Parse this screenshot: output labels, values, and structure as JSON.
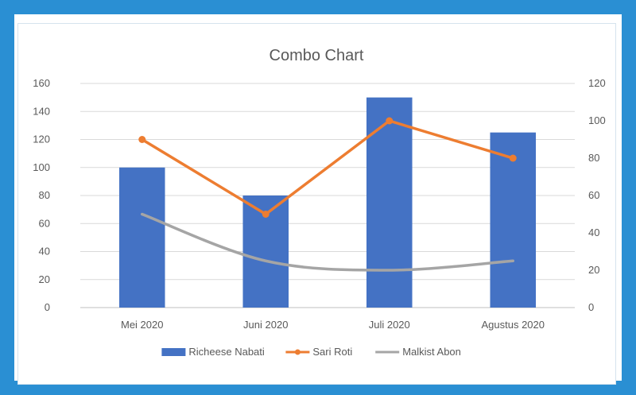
{
  "chart_data": {
    "type": "bar",
    "title": "Combo Chart",
    "categories": [
      "Mei 2020",
      "Juni 2020",
      "Juli 2020",
      "Agustus 2020"
    ],
    "y_left": {
      "ticks": [
        0,
        20,
        40,
        60,
        80,
        100,
        120,
        140,
        160
      ],
      "ylim": [
        0,
        160
      ]
    },
    "y_right": {
      "ticks": [
        0,
        20,
        40,
        60,
        80,
        100,
        120
      ],
      "ylim": [
        0,
        120
      ]
    },
    "grid": true,
    "legend_position": "bottom",
    "series": [
      {
        "name": "Richeese Nabati",
        "kind": "bar",
        "axis": "left",
        "color": "#4472c4",
        "values": [
          100,
          80,
          150,
          125
        ]
      },
      {
        "name": "Sari Roti",
        "kind": "line",
        "axis": "right",
        "color": "#ed7d31",
        "markers": true,
        "smooth": false,
        "values": [
          90,
          50,
          100,
          80
        ]
      },
      {
        "name": "Malkist Abon",
        "kind": "line",
        "axis": "right",
        "color": "#a5a5a5",
        "markers": false,
        "smooth": true,
        "values": [
          50,
          25,
          20,
          25
        ]
      }
    ]
  }
}
